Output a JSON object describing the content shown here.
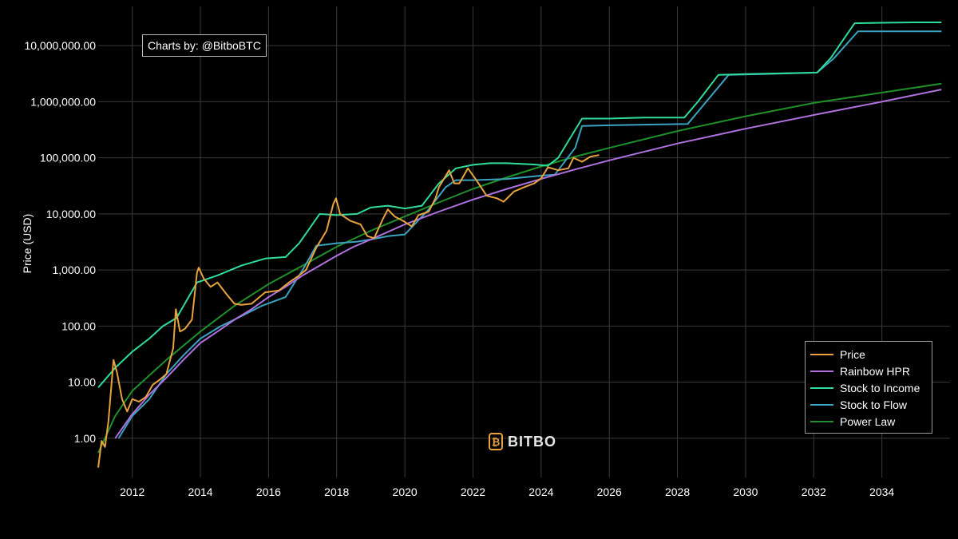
{
  "chart_data": {
    "type": "line",
    "ylabel": "Price (USD)",
    "yscale": "log",
    "xlim": [
      2011.0,
      2036.0
    ],
    "ylim": [
      0.2,
      50000000
    ],
    "x_ticks": [
      2012,
      2014,
      2016,
      2018,
      2020,
      2022,
      2024,
      2026,
      2028,
      2030,
      2032,
      2034
    ],
    "y_ticks": [
      {
        "value": 1,
        "label": "1.00"
      },
      {
        "value": 10,
        "label": "10.00"
      },
      {
        "value": 100,
        "label": "100.00"
      },
      {
        "value": 1000,
        "label": "1,000.00"
      },
      {
        "value": 10000,
        "label": "10,000.00"
      },
      {
        "value": 100000,
        "label": "100,000.00"
      },
      {
        "value": 1000000,
        "label": "1,000,000.00"
      },
      {
        "value": 10000000,
        "label": "10,000,000.00"
      }
    ],
    "grid": true,
    "legend_position": "bottom-right",
    "series": [
      {
        "name": "Price",
        "color": "#e8a33d",
        "points": [
          [
            2011.0,
            0.3
          ],
          [
            2011.1,
            0.9
          ],
          [
            2011.2,
            0.7
          ],
          [
            2011.3,
            2.0
          ],
          [
            2011.45,
            25
          ],
          [
            2011.55,
            15
          ],
          [
            2011.7,
            5
          ],
          [
            2011.85,
            3
          ],
          [
            2012.0,
            5
          ],
          [
            2012.2,
            4.5
          ],
          [
            2012.4,
            5.5
          ],
          [
            2012.6,
            9
          ],
          [
            2012.8,
            11
          ],
          [
            2013.0,
            14
          ],
          [
            2013.2,
            40
          ],
          [
            2013.28,
            200
          ],
          [
            2013.4,
            80
          ],
          [
            2013.55,
            90
          ],
          [
            2013.75,
            130
          ],
          [
            2013.9,
            900
          ],
          [
            2013.95,
            1100
          ],
          [
            2014.1,
            700
          ],
          [
            2014.3,
            500
          ],
          [
            2014.5,
            600
          ],
          [
            2014.8,
            350
          ],
          [
            2015.0,
            250
          ],
          [
            2015.2,
            240
          ],
          [
            2015.5,
            250
          ],
          [
            2015.9,
            400
          ],
          [
            2016.3,
            430
          ],
          [
            2016.6,
            600
          ],
          [
            2016.9,
            800
          ],
          [
            2017.1,
            1000
          ],
          [
            2017.4,
            2500
          ],
          [
            2017.7,
            5000
          ],
          [
            2017.9,
            15000
          ],
          [
            2017.98,
            19000
          ],
          [
            2018.1,
            10000
          ],
          [
            2018.4,
            7500
          ],
          [
            2018.7,
            6500
          ],
          [
            2018.9,
            4000
          ],
          [
            2019.1,
            3700
          ],
          [
            2019.35,
            8000
          ],
          [
            2019.5,
            12000
          ],
          [
            2019.7,
            9000
          ],
          [
            2019.95,
            7500
          ],
          [
            2020.2,
            6000
          ],
          [
            2020.4,
            9500
          ],
          [
            2020.7,
            11000
          ],
          [
            2020.9,
            19000
          ],
          [
            2021.0,
            30000
          ],
          [
            2021.3,
            60000
          ],
          [
            2021.45,
            35000
          ],
          [
            2021.6,
            35000
          ],
          [
            2021.85,
            65000
          ],
          [
            2022.1,
            40000
          ],
          [
            2022.4,
            21000
          ],
          [
            2022.7,
            19000
          ],
          [
            2022.9,
            16500
          ],
          [
            2023.2,
            25000
          ],
          [
            2023.5,
            30000
          ],
          [
            2023.8,
            35000
          ],
          [
            2024.0,
            43000
          ],
          [
            2024.2,
            68000
          ],
          [
            2024.5,
            60000
          ],
          [
            2024.8,
            65000
          ],
          [
            2024.95,
            100000
          ],
          [
            2025.2,
            85000
          ],
          [
            2025.45,
            105000
          ],
          [
            2025.7,
            112000
          ]
        ]
      },
      {
        "name": "Rainbow HPR",
        "color": "#b070e0",
        "points": [
          [
            2011.5,
            1
          ],
          [
            2012.0,
            2.7
          ],
          [
            2012.5,
            6
          ],
          [
            2013.0,
            12
          ],
          [
            2013.5,
            25
          ],
          [
            2014.0,
            50
          ],
          [
            2014.5,
            80
          ],
          [
            2015.0,
            130
          ],
          [
            2015.5,
            200
          ],
          [
            2016.0,
            330
          ],
          [
            2016.5,
            500
          ],
          [
            2017.0,
            800
          ],
          [
            2017.5,
            1200
          ],
          [
            2018.0,
            1800
          ],
          [
            2018.5,
            2600
          ],
          [
            2019.0,
            3500
          ],
          [
            2020.0,
            6500
          ],
          [
            2021.0,
            11000
          ],
          [
            2022.0,
            18000
          ],
          [
            2023.0,
            28000
          ],
          [
            2024.0,
            42000
          ],
          [
            2025.0,
            62000
          ],
          [
            2026.0,
            90000
          ],
          [
            2028.0,
            180000
          ],
          [
            2030.0,
            330000
          ],
          [
            2032.0,
            580000
          ],
          [
            2034.0,
            1000000
          ],
          [
            2035.75,
            1650000
          ]
        ]
      },
      {
        "name": "Stock to Income",
        "color": "#2fdc9b",
        "points": [
          [
            2011.0,
            8
          ],
          [
            2011.5,
            18
          ],
          [
            2012.0,
            35
          ],
          [
            2012.5,
            60
          ],
          [
            2012.9,
            100
          ],
          [
            2013.3,
            140
          ],
          [
            2013.9,
            600
          ],
          [
            2014.5,
            800
          ],
          [
            2015.2,
            1200
          ],
          [
            2015.9,
            1600
          ],
          [
            2016.5,
            1700
          ],
          [
            2016.9,
            3000
          ],
          [
            2017.5,
            10000
          ],
          [
            2018.0,
            9500
          ],
          [
            2018.6,
            10000
          ],
          [
            2019.0,
            13000
          ],
          [
            2019.5,
            14000
          ],
          [
            2020.0,
            12500
          ],
          [
            2020.5,
            14000
          ],
          [
            2021.0,
            35000
          ],
          [
            2021.5,
            65000
          ],
          [
            2022.0,
            75000
          ],
          [
            2022.5,
            80000
          ],
          [
            2023.0,
            80000
          ],
          [
            2023.8,
            76000
          ],
          [
            2024.2,
            72000
          ],
          [
            2024.5,
            100000
          ],
          [
            2024.8,
            200000
          ],
          [
            2025.2,
            500000
          ],
          [
            2026.0,
            500000
          ],
          [
            2027.0,
            520000
          ],
          [
            2028.2,
            520000
          ],
          [
            2028.6,
            1000000
          ],
          [
            2029.2,
            3000000
          ],
          [
            2030.0,
            3100000
          ],
          [
            2031.0,
            3200000
          ],
          [
            2032.1,
            3300000
          ],
          [
            2032.5,
            6000000
          ],
          [
            2033.2,
            25000000
          ],
          [
            2034.0,
            25500000
          ],
          [
            2035.0,
            26000000
          ],
          [
            2035.75,
            26000000
          ]
        ]
      },
      {
        "name": "Stock to Flow",
        "color": "#3aa3bf",
        "points": [
          [
            2011.6,
            1.0
          ],
          [
            2012.0,
            2.5
          ],
          [
            2012.5,
            5
          ],
          [
            2013.0,
            14
          ],
          [
            2013.5,
            30
          ],
          [
            2014.0,
            60
          ],
          [
            2014.6,
            100
          ],
          [
            2015.2,
            150
          ],
          [
            2015.8,
            230
          ],
          [
            2016.5,
            330
          ],
          [
            2017.0,
            1000
          ],
          [
            2017.4,
            2700
          ],
          [
            2018.0,
            3000
          ],
          [
            2018.6,
            3200
          ],
          [
            2019.0,
            3500
          ],
          [
            2019.5,
            4000
          ],
          [
            2020.0,
            4300
          ],
          [
            2020.7,
            12000
          ],
          [
            2021.2,
            30000
          ],
          [
            2021.5,
            40000
          ],
          [
            2022.0,
            40000
          ],
          [
            2023.0,
            42000
          ],
          [
            2023.5,
            45000
          ],
          [
            2024.0,
            48000
          ],
          [
            2024.4,
            50000
          ],
          [
            2025.0,
            150000
          ],
          [
            2025.2,
            370000
          ],
          [
            2026.0,
            380000
          ],
          [
            2027.0,
            390000
          ],
          [
            2028.3,
            400000
          ],
          [
            2029.5,
            3000000
          ],
          [
            2030.5,
            3100000
          ],
          [
            2032.1,
            3300000
          ],
          [
            2032.6,
            6000000
          ],
          [
            2033.3,
            18000000
          ],
          [
            2034.0,
            18000000
          ],
          [
            2035.0,
            18000000
          ],
          [
            2035.75,
            18000000
          ]
        ]
      },
      {
        "name": "Power Law",
        "color": "#1e9128",
        "points": [
          [
            2011.0,
            0.55
          ],
          [
            2011.5,
            2.5
          ],
          [
            2012.0,
            7
          ],
          [
            2013.0,
            25
          ],
          [
            2014.0,
            80
          ],
          [
            2015.0,
            230
          ],
          [
            2016.0,
            560
          ],
          [
            2017.0,
            1200
          ],
          [
            2018.0,
            2600
          ],
          [
            2019.0,
            5000
          ],
          [
            2020.0,
            9000
          ],
          [
            2021.0,
            16000
          ],
          [
            2022.0,
            28000
          ],
          [
            2023.0,
            45000
          ],
          [
            2024.0,
            70000
          ],
          [
            2025.0,
            105000
          ],
          [
            2026.0,
            150000
          ],
          [
            2028.0,
            300000
          ],
          [
            2030.0,
            550000
          ],
          [
            2032.0,
            950000
          ],
          [
            2034.0,
            1450000
          ],
          [
            2035.75,
            2100000
          ]
        ]
      }
    ]
  },
  "header": {
    "credit": "Charts by: @BitboBTC"
  },
  "watermark": {
    "text": "BITBO",
    "symbol": "₿",
    "color": "#e8a33d"
  }
}
